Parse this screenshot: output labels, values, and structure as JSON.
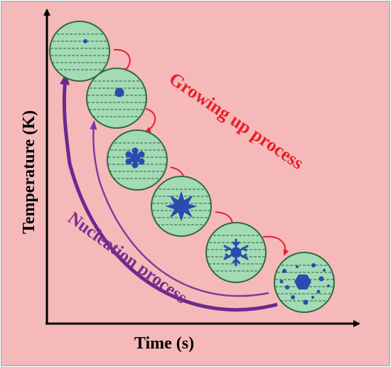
{
  "axes": {
    "x_label": "Time (s)",
    "y_label": "Temperature (K)"
  },
  "annotations": {
    "growing": "Growing up process",
    "nucleation": "Nucleation process"
  },
  "stages": [
    {
      "stage": 1,
      "crystal": "tiny-dot"
    },
    {
      "stage": 2,
      "crystal": "round-nucleus"
    },
    {
      "stage": 3,
      "crystal": "bumpy-cluster"
    },
    {
      "stage": 4,
      "crystal": "starburst"
    },
    {
      "stage": 5,
      "crystal": "dendrite-snowflake"
    },
    {
      "stage": 6,
      "crystal": "multiple-grains"
    }
  ],
  "colors": {
    "background": "#f5b9b9",
    "border": "#b8b8b8",
    "circle_fill": "#a3dcb4",
    "circle_stroke": "#2f6a3f",
    "crystal": "#2a4bb0",
    "growing_text": "#e8202a",
    "nucleation_text": "#7b2d8e",
    "arrow_red": "#e8202a",
    "arrow_purple": "#6a2a8e"
  }
}
